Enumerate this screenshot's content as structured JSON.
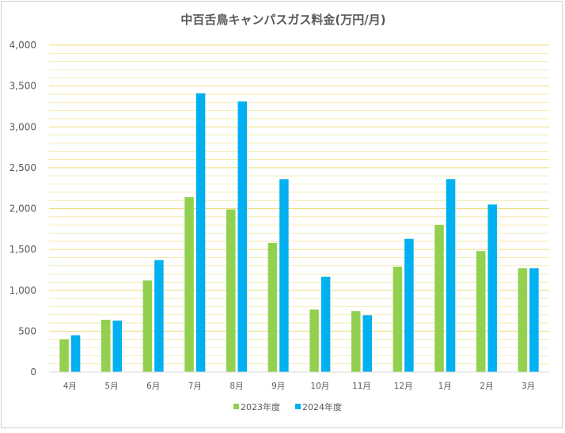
{
  "chart_data": {
    "type": "bar",
    "title": "中百舌鳥キャンパスガス料金(万円/月)",
    "xlabel": "",
    "ylabel": "",
    "ylim": [
      0,
      4000
    ],
    "yticks": [
      0,
      500,
      1000,
      1500,
      2000,
      2500,
      3000,
      3500,
      4000
    ],
    "ytick_labels": [
      "0",
      "500",
      "1,000",
      "1,500",
      "2,000",
      "2,500",
      "3,000",
      "3,500",
      "4,000"
    ],
    "minor_gridlines": true,
    "categories": [
      "4月",
      "5月",
      "6月",
      "7月",
      "8月",
      "9月",
      "10月",
      "11月",
      "12月",
      "1月",
      "2月",
      "3月"
    ],
    "series": [
      {
        "name": "2023年度",
        "color": "#92d050",
        "values": [
          400,
          640,
          1120,
          2140,
          1990,
          1580,
          765,
          745,
          1290,
          1800,
          1480,
          1270
        ]
      },
      {
        "name": "2024年度",
        "color": "#00b0f0",
        "values": [
          450,
          630,
          1370,
          3410,
          3310,
          2360,
          1165,
          695,
          1630,
          2360,
          2050,
          1270
        ]
      }
    ],
    "gridline_color": "#f3e7a0",
    "legend_position": "bottom"
  }
}
